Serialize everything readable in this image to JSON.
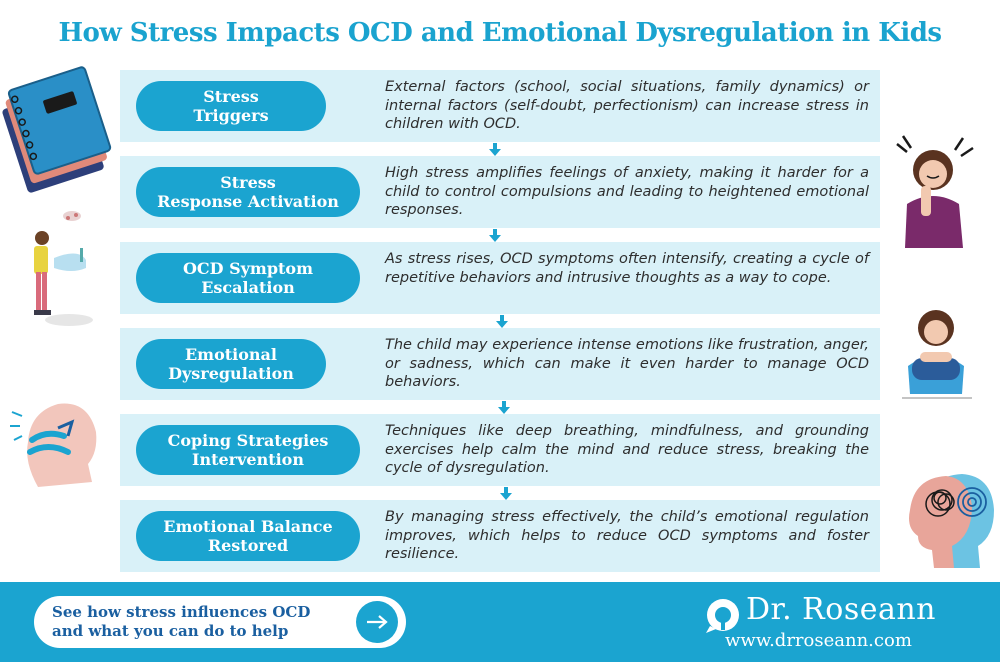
{
  "title": "How Stress Impacts OCD and Emotional Dysregulation in Kids",
  "steps": [
    {
      "label": "Stress\nTriggers",
      "description": "External factors (school, social situations, family dynamics) or internal factors (self-doubt, perfectionism) can increase stress in children with OCD."
    },
    {
      "label": "Stress\nResponse Activation",
      "description": "High stress amplifies feelings of anxiety, making it harder for a child to control compulsions and leading to heightened emotional responses."
    },
    {
      "label": "OCD Symptom\nEscalation",
      "description": "As stress rises, OCD symptoms often intensify, creating a cycle of repetitive behaviors and intrusive thoughts as a way to cope."
    },
    {
      "label": "Emotional\nDysregulation",
      "description": "The child may experience intense emotions like frustration, anger, or sadness, which can make it even harder to manage OCD behaviors."
    },
    {
      "label": "Coping Strategies\nIntervention",
      "description": "Techniques like deep breathing, mindfulness, and grounding exercises help calm the mind and reduce stress, breaking the cycle of dysregulation."
    },
    {
      "label": "Emotional Balance\nRestored",
      "description": "By managing stress effectively, the child’s emotional regulation improves, which helps to reduce OCD symptoms and foster resilience."
    }
  ],
  "footer": {
    "cta_text": "See how stress influences OCD\nand what you can do to help",
    "brand_name": "Dr. Roseann",
    "brand_url": "www.drroseann.com"
  },
  "colors": {
    "accent": "#1ba4d0",
    "step_background": "#d9f1f8",
    "cta_text": "#1a5fa0"
  },
  "icons": [
    "arrow-right-icon",
    "brand-logo-icon",
    "down-arrow-icon"
  ]
}
